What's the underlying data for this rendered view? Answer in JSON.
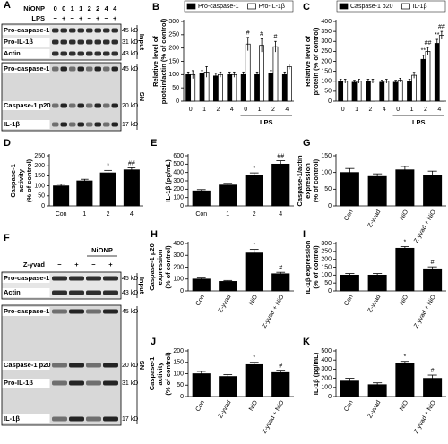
{
  "chart_data": [
    {
      "type": "bar",
      "panel": "B",
      "ylabel": [
        "Relative level of",
        "protein/actin (% of control)"
      ],
      "categories": [
        "0",
        "1",
        "2",
        "4",
        "0",
        "1",
        "2",
        "4"
      ],
      "group_label": "LPS",
      "series": [
        {
          "name": "Pro-caspase-1",
          "color": "#000000",
          "values": [
            100,
            105,
            95,
            100,
            100,
            100,
            105,
            100
          ],
          "errors": [
            10,
            10,
            10,
            10,
            10,
            10,
            10,
            10
          ],
          "markers": [
            null,
            null,
            null,
            null,
            null,
            null,
            null,
            null
          ]
        },
        {
          "name": "Pro-IL-1β",
          "color": "#ffffff",
          "values": [
            100,
            110,
            100,
            100,
            215,
            210,
            205,
            130
          ],
          "errors": [
            15,
            20,
            10,
            10,
            25,
            25,
            20,
            10
          ],
          "markers": [
            null,
            null,
            null,
            null,
            "#",
            "#",
            "#",
            null
          ]
        }
      ],
      "ylim": [
        0,
        300
      ],
      "yticks": [
        0,
        50,
        100,
        150,
        200,
        250,
        300
      ]
    },
    {
      "type": "bar",
      "panel": "C",
      "ylabel": [
        "Relative level of",
        "protein (% of control)"
      ],
      "categories": [
        "0",
        "1",
        "2",
        "4",
        "0",
        "1",
        "2",
        "4"
      ],
      "group_label": "LPS",
      "series": [
        {
          "name": "Caspase-1 p20",
          "color": "#000000",
          "values": [
            100,
            95,
            100,
            95,
            95,
            100,
            210,
            290
          ],
          "errors": [
            10,
            10,
            10,
            10,
            10,
            10,
            20,
            20
          ],
          "markers": [
            null,
            null,
            null,
            null,
            null,
            null,
            "**",
            "**"
          ]
        },
        {
          "name": "IL-1β",
          "color": "#ffffff",
          "values": [
            100,
            100,
            100,
            100,
            105,
            130,
            250,
            330
          ],
          "errors": [
            10,
            10,
            10,
            10,
            10,
            15,
            20,
            20
          ],
          "markers": [
            null,
            null,
            null,
            null,
            null,
            null,
            "##",
            "##"
          ]
        }
      ],
      "ylim": [
        0,
        400
      ],
      "yticks": [
        0,
        50,
        100,
        150,
        200,
        250,
        300,
        350,
        400
      ]
    },
    {
      "type": "bar",
      "panel": "D",
      "ylabel": [
        "Caspase-1",
        "activity",
        "(% of control)"
      ],
      "categories": [
        "Con",
        "1",
        "2",
        "4"
      ],
      "color": "#000000",
      "values": [
        100,
        125,
        165,
        180
      ],
      "errors": [
        8,
        8,
        12,
        10
      ],
      "markers": [
        null,
        null,
        "*",
        "##"
      ],
      "ylim": [
        0,
        250
      ],
      "yticks": [
        0,
        50,
        100,
        150,
        200,
        250
      ]
    },
    {
      "type": "bar",
      "panel": "E",
      "ylabel": [
        "IL-1β (pg/mL)"
      ],
      "categories": [
        "Con",
        "1",
        "2",
        "4"
      ],
      "color": "#000000",
      "values": [
        180,
        250,
        370,
        500
      ],
      "errors": [
        15,
        20,
        25,
        40
      ],
      "markers": [
        null,
        null,
        "*",
        "##"
      ],
      "ylim": [
        0,
        600
      ],
      "yticks": [
        0,
        100,
        200,
        300,
        400,
        500,
        600
      ]
    },
    {
      "type": "bar",
      "panel": "G",
      "ylabel": [
        "Caspase-1/actin",
        "expression",
        "(% of control)"
      ],
      "categories": [
        "Con",
        "Z-yvad",
        "NiO",
        "Z-yvad + NiO"
      ],
      "color": "#000000",
      "values": [
        100,
        88,
        108,
        92
      ],
      "errors": [
        12,
        8,
        10,
        12
      ],
      "markers": [
        null,
        null,
        null,
        null
      ],
      "ylim": [
        0,
        150
      ],
      "yticks": [
        0,
        50,
        100,
        150
      ]
    },
    {
      "type": "bar",
      "panel": "H",
      "ylabel": [
        "Caspase-1 p20",
        "expression",
        "(% of control)"
      ],
      "categories": [
        "Con",
        "Z-yvad",
        "NiO",
        "Z-yvad + NiO"
      ],
      "color": "#000000",
      "values": [
        100,
        80,
        320,
        145
      ],
      "errors": [
        8,
        8,
        30,
        12
      ],
      "markers": [
        null,
        null,
        "*",
        "#"
      ],
      "ylim": [
        0,
        400
      ],
      "yticks": [
        0,
        100,
        200,
        300,
        400
      ]
    },
    {
      "type": "bar",
      "panel": "I",
      "ylabel": [
        "IL-1β expression",
        "(% of control)"
      ],
      "categories": [
        "Con",
        "Z-yvad",
        "NiO",
        "Z-yvad + NiO"
      ],
      "color": "#000000",
      "values": [
        100,
        100,
        270,
        140
      ],
      "errors": [
        10,
        10,
        10,
        12
      ],
      "markers": [
        null,
        null,
        "*",
        "#"
      ],
      "ylim": [
        0,
        300
      ],
      "yticks": [
        0,
        50,
        100,
        150,
        200,
        250,
        300
      ]
    },
    {
      "type": "bar",
      "panel": "J",
      "ylabel": [
        "Caspase-1",
        "activity",
        "(% of control)"
      ],
      "categories": [
        "Con",
        "Z-yvad",
        "NiO",
        "Z-yvad + NiO"
      ],
      "color": "#000000",
      "values": [
        100,
        88,
        140,
        105
      ],
      "errors": [
        10,
        8,
        10,
        10
      ],
      "markers": [
        null,
        null,
        "*",
        "#"
      ],
      "ylim": [
        0,
        200
      ],
      "yticks": [
        0,
        50,
        100,
        150,
        200
      ]
    },
    {
      "type": "bar",
      "panel": "K",
      "ylabel": [
        "IL-1β (pg/mL)"
      ],
      "categories": [
        "Con",
        "Z-yvad",
        "NiO",
        "Z-yvad + NiO"
      ],
      "color": "#000000",
      "values": [
        170,
        130,
        360,
        200
      ],
      "errors": [
        30,
        20,
        25,
        35
      ],
      "markers": [
        null,
        null,
        "*",
        "#"
      ],
      "ylim": [
        0,
        500
      ],
      "yticks": [
        0,
        100,
        200,
        300,
        400,
        500
      ]
    }
  ],
  "blots": [
    {
      "panel": "A",
      "header": [
        {
          "label": "NiONP",
          "values": [
            "0",
            "0",
            "1",
            "1",
            "2",
            "2",
            "4",
            "4"
          ]
        },
        {
          "label": "LPS",
          "values": [
            "−",
            "+",
            "−",
            "+",
            "−",
            "+",
            "−",
            "+"
          ]
        }
      ],
      "groups": [
        {
          "label": "Input",
          "rows": [
            {
              "label": "Pro-caspase-1",
              "size": "45 kD"
            },
            {
              "label": "Pro-IL-1β",
              "size": "31 kD"
            },
            {
              "label": "Actin",
              "size": "43 kD"
            }
          ]
        },
        {
          "label": "SN",
          "rows": [
            {
              "label": "Pro-caspase-1",
              "size": "45 kD"
            },
            {
              "label": "Caspase-1 p20",
              "size": "20 kD"
            },
            {
              "label": "IL-1β",
              "size": "17 kD"
            }
          ]
        }
      ]
    },
    {
      "panel": "F",
      "span_label": "NiONP",
      "header": [
        {
          "label": "Z-yvad",
          "values": [
            "−",
            "+",
            "−",
            "+"
          ]
        }
      ],
      "groups": [
        {
          "label": "Input",
          "rows": [
            {
              "label": "Pro-caspase-1",
              "size": "45 kD"
            },
            {
              "label": "Actin",
              "size": "43 kD"
            }
          ]
        },
        {
          "label": "SN",
          "rows": [
            {
              "label": "Pro-caspase-1",
              "size": "45 kD"
            },
            {
              "label": "Caspase-1 p20",
              "size": "20 kD"
            },
            {
              "label": "Pro-IL-1β",
              "size": "31 kD"
            },
            {
              "label": "IL-1β",
              "size": "17 kD"
            }
          ]
        }
      ]
    }
  ]
}
